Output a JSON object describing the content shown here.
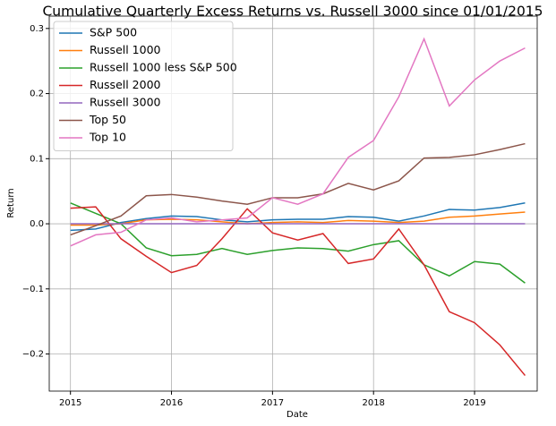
{
  "chart_data": {
    "type": "line",
    "title": "Cumulative Quarterly Excess Returns vs. Russell 3000 since 01/01/2015",
    "x_label": "Date",
    "y_label": "Return",
    "x": [
      2015,
      2015.25,
      2015.5,
      2015.75,
      2016,
      2016.25,
      2016.5,
      2016.75,
      2017,
      2017.25,
      2017.5,
      2017.75,
      2018,
      2018.25,
      2018.5,
      2018.75,
      2019,
      2019.25,
      2019.5
    ],
    "xlim": [
      2014.79,
      2019.62
    ],
    "xticks": [
      2015,
      2016,
      2017,
      2018,
      2019
    ],
    "ylim": [
      -0.257,
      0.319
    ],
    "yticks": [
      {
        "value": -0.2,
        "label": "−0.2"
      },
      {
        "value": -0.1,
        "label": "−0.1"
      },
      {
        "value": 0,
        "label": "0.0"
      },
      0.1,
      0.2,
      0.3
    ],
    "grid": true,
    "legend": "upper-left",
    "series": [
      {
        "name": "S&P 500",
        "color": "#1f77b4",
        "values": [
          -0.01,
          -0.008,
          0.002,
          0.008,
          0.012,
          0.011,
          0.006,
          0.003,
          0.006,
          0.007,
          0.007,
          0.011,
          0.01,
          0.004,
          0.012,
          0.022,
          0.021,
          0.025,
          0.032
        ]
      },
      {
        "name": "Russell 1000",
        "color": "#ff7f0e",
        "values": [
          -0.002,
          -0.002,
          0.0,
          0.006,
          0.007,
          0.006,
          0.003,
          0.0,
          0.002,
          0.003,
          0.002,
          0.005,
          0.004,
          0.002,
          0.004,
          0.01,
          0.012,
          0.015,
          0.018
        ]
      },
      {
        "name": "Russell 1000 less S&P 500",
        "color": "#2ca02c",
        "values": [
          0.032,
          0.016,
          0.0,
          -0.037,
          -0.049,
          -0.047,
          -0.038,
          -0.047,
          -0.041,
          -0.037,
          -0.038,
          -0.042,
          -0.032,
          -0.026,
          -0.063,
          -0.08,
          -0.058,
          -0.062,
          -0.091
        ]
      },
      {
        "name": "Russell 2000",
        "color": "#d62728",
        "values": [
          0.024,
          0.026,
          -0.023,
          -0.05,
          -0.075,
          -0.064,
          -0.023,
          0.023,
          -0.014,
          -0.025,
          -0.015,
          -0.061,
          -0.054,
          -0.008,
          -0.063,
          -0.135,
          -0.152,
          -0.186,
          -0.233
        ]
      },
      {
        "name": "Russell 3000",
        "color": "#9467bd",
        "values": [
          0,
          0,
          0,
          0,
          0,
          0,
          0,
          0,
          0,
          0,
          0,
          0,
          0,
          0,
          0,
          0,
          0,
          0,
          0
        ]
      },
      {
        "name": "Top 50",
        "color": "#8c564b",
        "values": [
          -0.017,
          -0.003,
          0.012,
          0.043,
          0.045,
          0.041,
          0.035,
          0.03,
          0.04,
          0.04,
          0.046,
          0.062,
          0.052,
          0.066,
          0.101,
          0.102,
          0.106,
          0.114,
          0.123
        ]
      },
      {
        "name": "Top 10",
        "color": "#e377c2",
        "values": [
          -0.034,
          -0.017,
          -0.013,
          0.006,
          0.009,
          0.003,
          0.006,
          0.009,
          0.04,
          0.03,
          0.046,
          0.102,
          0.128,
          0.195,
          0.284,
          0.181,
          0.221,
          0.25,
          0.27
        ]
      }
    ]
  }
}
